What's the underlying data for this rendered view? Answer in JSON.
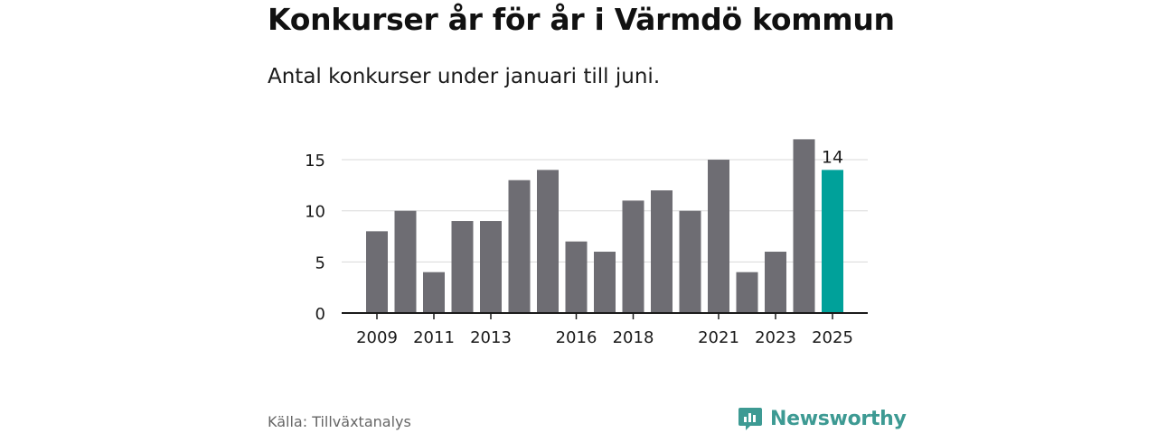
{
  "title": "Konkurser år för år i Värmdö kommun",
  "subtitle": "Antal konkurser under januari till juni.",
  "source": "Källa: Tillväxtanalys",
  "brand": {
    "name": "Newsworthy",
    "icon": "bar-chart-speech-bubble-icon",
    "color": "#3d9a93"
  },
  "colors": {
    "bar": "#6e6d73",
    "highlight": "#00a19a",
    "grid": "#d9d9d9",
    "axis": "#1a1a1a"
  },
  "chart_data": {
    "type": "bar",
    "categories": [
      "2009",
      "2010",
      "2011",
      "2012",
      "2013",
      "2014",
      "2015",
      "2016",
      "2017",
      "2018",
      "2019",
      "2020",
      "2021",
      "2022",
      "2023",
      "2024",
      "2025"
    ],
    "values": [
      8,
      10,
      4,
      9,
      9,
      13,
      14,
      7,
      6,
      11,
      12,
      10,
      15,
      4,
      6,
      17,
      14
    ],
    "x_tick_labels": [
      "2009",
      "2011",
      "2013",
      "2016",
      "2018",
      "2021",
      "2023",
      "2025"
    ],
    "y_ticks": [
      0,
      5,
      10,
      15
    ],
    "ylim": [
      0,
      17
    ],
    "highlight_category": "2025",
    "data_labels": [
      {
        "category": "2025",
        "text": "14"
      }
    ],
    "xlabel": "",
    "ylabel": "",
    "grid": true,
    "legend": "none"
  }
}
